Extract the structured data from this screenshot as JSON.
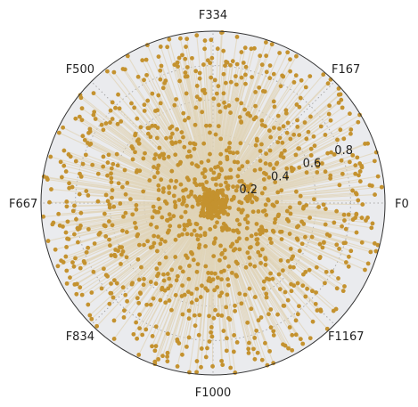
{
  "chart_data": {
    "type": "scatter",
    "projection": "polar",
    "title": "",
    "theta_tick_labels": [
      "F0",
      "F167",
      "F334",
      "F500",
      "F667",
      "F834",
      "F1000",
      "F1167"
    ],
    "r_tick_labels": [
      "0.2",
      "0.4",
      "0.6",
      "0.8"
    ],
    "r_ticks": [
      0.2,
      0.4,
      0.6,
      0.8
    ],
    "rlim": [
      0,
      1.0
    ],
    "n_features": 1334,
    "grid": true,
    "stems_from_origin": true,
    "description_generator": {
      "count": 1334,
      "seed": 20240517,
      "distribution": "mix of near-origin cluster (r<0.1) and spread to ~1.0"
    },
    "colors": {
      "marker": "#c4922f",
      "stem": "#e0d4b8",
      "background": "#eaebee",
      "grid": "#a8a8a8",
      "frame": "#333333"
    }
  }
}
